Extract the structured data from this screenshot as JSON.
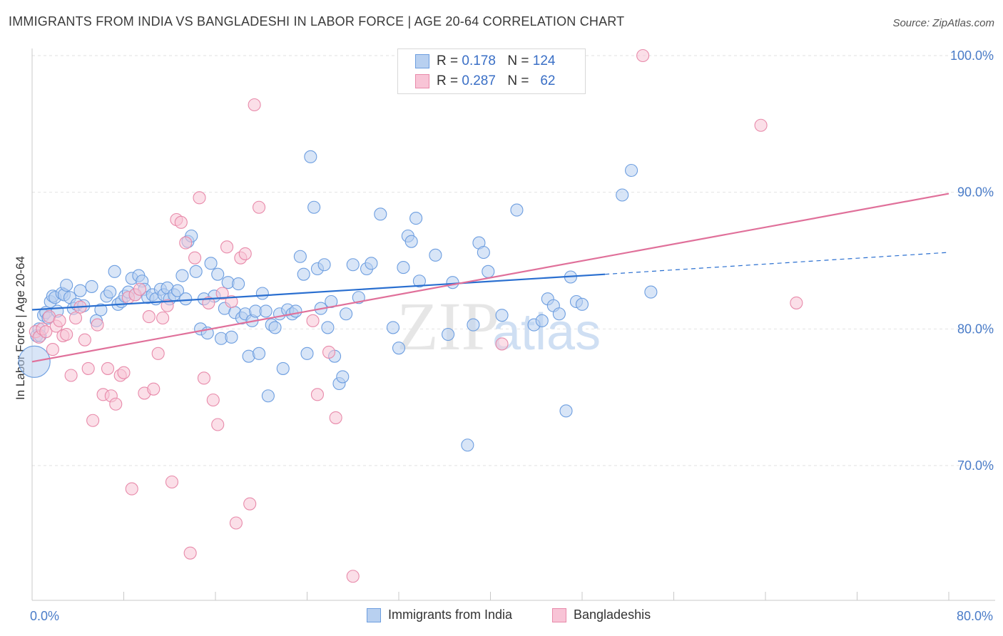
{
  "title": "IMMIGRANTS FROM INDIA VS BANGLADESHI IN LABOR FORCE | AGE 20-64 CORRELATION CHART",
  "source": "Source: ZipAtlas.com",
  "watermark": "ZIPatlas",
  "legend": {
    "r_label": "R =",
    "n_label": "N =",
    "rows": [
      {
        "r": "0.178",
        "n": "124",
        "fill": "#b8d0f0",
        "stroke": "#6d9ee0"
      },
      {
        "r": "0.287",
        "n": "62",
        "fill": "#f8c4d6",
        "stroke": "#e88aaa"
      }
    ]
  },
  "bottom_legend": [
    {
      "label": "Immigrants from India",
      "fill": "#b8d0f0",
      "stroke": "#6d9ee0"
    },
    {
      "label": "Bangladeshis",
      "fill": "#f8c4d6",
      "stroke": "#e88aaa"
    }
  ],
  "chart_data": {
    "type": "scatter",
    "title": "IMMIGRANTS FROM INDIA VS BANGLADESHI IN LABOR FORCE | AGE 20-64 CORRELATION CHART",
    "xlabel": "",
    "ylabel": "In Labor Force | Age 20-64",
    "xlim": [
      0,
      80
    ],
    "ylim": [
      60.5,
      100.5
    ],
    "x_tick_labels": [
      "0.0%",
      "80.0%"
    ],
    "y_ticks": [
      70,
      80,
      90,
      100
    ],
    "y_tick_labels": [
      "70.0%",
      "80.0%",
      "90.0%",
      "100.0%"
    ],
    "grid": true,
    "legend_position": "top-center",
    "series": [
      {
        "name": "Immigrants from India",
        "color": "#6d9ee0",
        "fill": "#b8d0f0",
        "trend": {
          "x": [
            0,
            50
          ],
          "y": [
            81.4,
            84.0
          ],
          "dashed_extension": {
            "x": [
              50,
              80
            ],
            "y": [
              84.0,
              85.6
            ]
          },
          "color": "#2a6fd0"
        },
        "points": [
          [
            0.2,
            77.6
          ],
          [
            0.4,
            79.5
          ],
          [
            0.6,
            80.0
          ],
          [
            0.7,
            79.5
          ],
          [
            1.0,
            81.0
          ],
          [
            1.2,
            81.2
          ],
          [
            1.4,
            80.8
          ],
          [
            1.6,
            82.0
          ],
          [
            1.8,
            82.4
          ],
          [
            2.0,
            82.3
          ],
          [
            2.2,
            81.3
          ],
          [
            2.6,
            82.6
          ],
          [
            2.8,
            82.5
          ],
          [
            3.0,
            83.2
          ],
          [
            3.3,
            82.3
          ],
          [
            3.6,
            81.5
          ],
          [
            3.9,
            81.8
          ],
          [
            4.2,
            82.8
          ],
          [
            4.5,
            81.7
          ],
          [
            5.2,
            83.1
          ],
          [
            5.6,
            80.6
          ],
          [
            6.0,
            81.4
          ],
          [
            6.5,
            82.4
          ],
          [
            6.8,
            82.7
          ],
          [
            7.2,
            84.2
          ],
          [
            7.5,
            81.8
          ],
          [
            7.8,
            82.0
          ],
          [
            8.1,
            82.4
          ],
          [
            8.4,
            82.7
          ],
          [
            8.7,
            83.7
          ],
          [
            9.0,
            82.5
          ],
          [
            9.3,
            83.9
          ],
          [
            9.6,
            83.5
          ],
          [
            9.8,
            82.9
          ],
          [
            10.1,
            82.3
          ],
          [
            10.5,
            82.5
          ],
          [
            10.8,
            82.2
          ],
          [
            11.2,
            82.9
          ],
          [
            11.5,
            82.5
          ],
          [
            11.8,
            83.0
          ],
          [
            12.0,
            82.2
          ],
          [
            12.4,
            82.5
          ],
          [
            12.7,
            82.8
          ],
          [
            13.1,
            83.9
          ],
          [
            13.4,
            82.2
          ],
          [
            13.6,
            86.4
          ],
          [
            13.9,
            86.8
          ],
          [
            14.3,
            84.2
          ],
          [
            14.7,
            80.0
          ],
          [
            15.0,
            82.2
          ],
          [
            15.3,
            79.7
          ],
          [
            15.6,
            84.8
          ],
          [
            15.9,
            82.4
          ],
          [
            16.2,
            84.0
          ],
          [
            16.5,
            79.3
          ],
          [
            16.8,
            81.5
          ],
          [
            17.1,
            83.4
          ],
          [
            17.4,
            79.4
          ],
          [
            17.7,
            81.2
          ],
          [
            18.0,
            83.3
          ],
          [
            18.3,
            80.8
          ],
          [
            18.6,
            81.1
          ],
          [
            18.9,
            78.0
          ],
          [
            19.2,
            80.6
          ],
          [
            19.5,
            81.3
          ],
          [
            19.8,
            78.2
          ],
          [
            20.1,
            82.6
          ],
          [
            20.4,
            81.3
          ],
          [
            20.6,
            75.1
          ],
          [
            20.9,
            80.3
          ],
          [
            21.2,
            80.1
          ],
          [
            21.6,
            81.1
          ],
          [
            21.9,
            77.1
          ],
          [
            22.3,
            81.4
          ],
          [
            22.7,
            81.1
          ],
          [
            23.0,
            81.3
          ],
          [
            23.4,
            85.3
          ],
          [
            23.7,
            84.0
          ],
          [
            24.0,
            78.2
          ],
          [
            24.3,
            92.6
          ],
          [
            24.6,
            88.9
          ],
          [
            24.9,
            84.4
          ],
          [
            25.2,
            81.5
          ],
          [
            25.5,
            84.7
          ],
          [
            25.8,
            80.1
          ],
          [
            26.1,
            82.0
          ],
          [
            26.4,
            78.0
          ],
          [
            26.8,
            76.0
          ],
          [
            27.1,
            76.5
          ],
          [
            27.4,
            81.1
          ],
          [
            28.0,
            84.7
          ],
          [
            28.5,
            82.3
          ],
          [
            29.2,
            84.4
          ],
          [
            29.6,
            84.8
          ],
          [
            30.4,
            88.4
          ],
          [
            31.5,
            80.1
          ],
          [
            32.0,
            78.6
          ],
          [
            32.4,
            84.5
          ],
          [
            32.8,
            86.8
          ],
          [
            33.1,
            86.4
          ],
          [
            33.5,
            88.1
          ],
          [
            33.8,
            83.5
          ],
          [
            35.2,
            85.4
          ],
          [
            36.3,
            79.6
          ],
          [
            36.7,
            83.4
          ],
          [
            38.0,
            71.5
          ],
          [
            38.5,
            80.3
          ],
          [
            39.0,
            86.3
          ],
          [
            39.4,
            85.6
          ],
          [
            39.8,
            84.2
          ],
          [
            41.0,
            81.0
          ],
          [
            42.3,
            88.7
          ],
          [
            43.8,
            80.3
          ],
          [
            44.5,
            80.6
          ],
          [
            45.0,
            82.2
          ],
          [
            45.5,
            81.7
          ],
          [
            46.0,
            81.1
          ],
          [
            46.6,
            74.0
          ],
          [
            47.0,
            83.8
          ],
          [
            47.5,
            82.0
          ],
          [
            48.0,
            81.8
          ],
          [
            51.5,
            89.8
          ],
          [
            52.3,
            91.6
          ],
          [
            54.0,
            82.7
          ]
        ]
      },
      {
        "name": "Bangladeshis",
        "color": "#e88aaa",
        "fill": "#f8c4d6",
        "trend": {
          "x": [
            0,
            80
          ],
          "y": [
            77.6,
            89.9
          ],
          "color": "#e0709a"
        },
        "points": [
          [
            0.3,
            79.8
          ],
          [
            0.6,
            79.4
          ],
          [
            0.9,
            80.0
          ],
          [
            1.2,
            79.8
          ],
          [
            1.5,
            80.9
          ],
          [
            1.8,
            78.5
          ],
          [
            2.1,
            80.2
          ],
          [
            2.4,
            80.6
          ],
          [
            2.7,
            79.5
          ],
          [
            3.0,
            79.6
          ],
          [
            3.4,
            76.6
          ],
          [
            3.8,
            80.8
          ],
          [
            4.2,
            81.6
          ],
          [
            4.6,
            79.2
          ],
          [
            4.9,
            77.1
          ],
          [
            5.3,
            73.3
          ],
          [
            5.7,
            80.3
          ],
          [
            6.2,
            75.2
          ],
          [
            6.6,
            77.1
          ],
          [
            6.9,
            75.1
          ],
          [
            7.3,
            74.5
          ],
          [
            7.7,
            76.6
          ],
          [
            8.0,
            76.8
          ],
          [
            8.4,
            82.3
          ],
          [
            8.7,
            68.3
          ],
          [
            9.0,
            82.5
          ],
          [
            9.4,
            82.9
          ],
          [
            9.8,
            75.3
          ],
          [
            10.2,
            80.9
          ],
          [
            10.6,
            75.6
          ],
          [
            11.0,
            78.2
          ],
          [
            11.4,
            80.8
          ],
          [
            11.8,
            81.7
          ],
          [
            12.2,
            68.8
          ],
          [
            12.6,
            88.0
          ],
          [
            13.0,
            87.8
          ],
          [
            13.4,
            86.3
          ],
          [
            13.8,
            63.6
          ],
          [
            14.2,
            85.2
          ],
          [
            14.6,
            89.6
          ],
          [
            15.0,
            76.4
          ],
          [
            15.4,
            81.9
          ],
          [
            15.8,
            74.8
          ],
          [
            16.2,
            73.0
          ],
          [
            16.6,
            82.6
          ],
          [
            17.0,
            86.0
          ],
          [
            17.4,
            82.0
          ],
          [
            17.8,
            65.8
          ],
          [
            18.2,
            85.2
          ],
          [
            18.6,
            85.5
          ],
          [
            19.0,
            67.2
          ],
          [
            19.4,
            96.4
          ],
          [
            19.8,
            88.9
          ],
          [
            24.5,
            80.6
          ],
          [
            24.9,
            75.2
          ],
          [
            25.9,
            78.3
          ],
          [
            26.5,
            73.5
          ],
          [
            28.0,
            61.9
          ],
          [
            41.0,
            78.9
          ],
          [
            53.3,
            100.0
          ],
          [
            63.6,
            94.9
          ],
          [
            66.7,
            81.9
          ]
        ]
      }
    ]
  }
}
